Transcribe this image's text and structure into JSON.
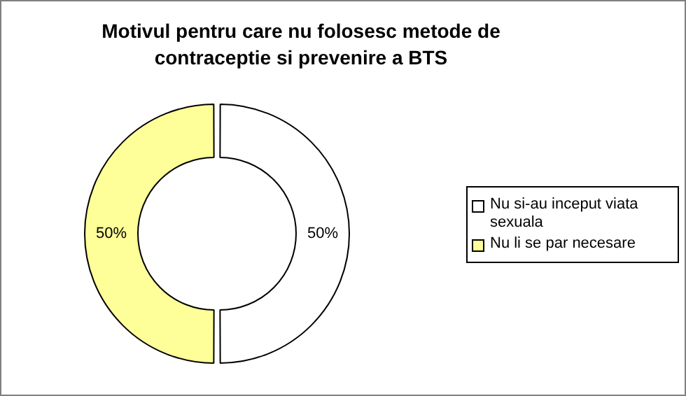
{
  "chart_data": {
    "type": "donut",
    "title": "Motivul pentru care nu folosesc metode de contraceptie si prevenire a BTS",
    "categories": [
      "Nu si-au inceput viata sexuala",
      "Nu li se par necesare"
    ],
    "values": [
      50,
      50
    ],
    "colors": [
      "#ffffff",
      "#ffff99"
    ],
    "value_labels": [
      "50%",
      "50%"
    ],
    "legend": "right"
  }
}
